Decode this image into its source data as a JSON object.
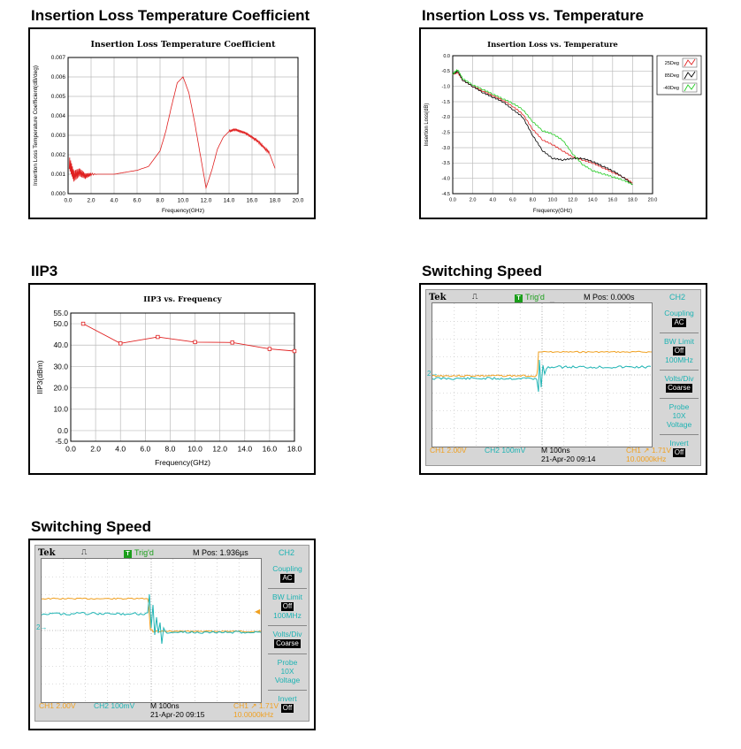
{
  "sections": [
    {
      "title": "Insertion Loss Temperature Coefficient"
    },
    {
      "title": "Insertion Loss vs. Temperature"
    },
    {
      "title": "IIP3"
    },
    {
      "title": "Switching Speed"
    },
    {
      "title": "Switching Speed"
    }
  ],
  "chart_data": [
    {
      "type": "line",
      "title": "Insertion Loss Temperature Coefficient",
      "xlabel": "Frequency(GHz)",
      "ylabel": "Insertion Loss Temperature Coefficient(dB/deg)",
      "xlim": [
        0,
        20
      ],
      "ylim": [
        0,
        0.007
      ],
      "xticks": [
        "0.0",
        "2.0",
        "4.0",
        "6.0",
        "8.0",
        "10.0",
        "12.0",
        "14.0",
        "16.0",
        "18.0",
        "20.0"
      ],
      "yticks": [
        "0.000",
        "0.001",
        "0.002",
        "0.003",
        "0.004",
        "0.005",
        "0.006",
        "0.007"
      ],
      "series": [
        {
          "color": "#e02020",
          "x": [
            0.1,
            0.5,
            1,
            1.5,
            2,
            3,
            4,
            5,
            6,
            7,
            8,
            8.5,
            9,
            9.5,
            10,
            10.5,
            11,
            11.5,
            12,
            12.5,
            13,
            13.5,
            14,
            14.5,
            15,
            15.5,
            16,
            16.5,
            17,
            17.5,
            18
          ],
          "y": [
            0.0016,
            0.0009,
            0.0011,
            0.0009,
            0.001,
            0.001,
            0.001,
            0.0011,
            0.0012,
            0.0014,
            0.0022,
            0.0032,
            0.0045,
            0.0057,
            0.006,
            0.0052,
            0.0037,
            0.002,
            0.0003,
            0.0012,
            0.0023,
            0.0029,
            0.0032,
            0.0033,
            0.0032,
            0.0031,
            0.0029,
            0.0027,
            0.0024,
            0.0021,
            0.0013
          ]
        }
      ],
      "grid": true
    },
    {
      "type": "line",
      "title": "Insertion Loss vs. Temperature",
      "xlabel": "Frequency(GHz)",
      "ylabel": "Insertion Loss(dB)",
      "xlim": [
        0,
        20
      ],
      "ylim": [
        -4.5,
        0
      ],
      "xticks": [
        "0.0",
        "2.0",
        "4.0",
        "6.0",
        "8.0",
        "10.0",
        "12.0",
        "14.0",
        "16.0",
        "18.0",
        "20.0"
      ],
      "yticks": [
        "0.0",
        "-0.5",
        "-1.0",
        "-1.5",
        "-2.0",
        "-2.5",
        "-3.0",
        "-3.5",
        "-4.0",
        "-4.5"
      ],
      "series": [
        {
          "name": "25Deg",
          "color": "#e02020",
          "x": [
            0,
            0.5,
            1,
            2,
            3,
            4,
            5,
            6,
            7,
            8,
            9,
            10,
            11,
            12,
            13,
            14,
            15,
            16,
            17,
            18
          ],
          "y": [
            -0.6,
            -0.55,
            -0.8,
            -1.0,
            -1.15,
            -1.3,
            -1.45,
            -1.65,
            -1.9,
            -2.4,
            -2.75,
            -2.9,
            -3.1,
            -3.3,
            -3.4,
            -3.5,
            -3.65,
            -3.8,
            -3.95,
            -4.15
          ]
        },
        {
          "name": "85Deg",
          "color": "#000000",
          "x": [
            0,
            0.5,
            1,
            2,
            3,
            4,
            5,
            6,
            7,
            8,
            9,
            10,
            11,
            12,
            13,
            14,
            15,
            16,
            17,
            18
          ],
          "y": [
            -0.6,
            -0.5,
            -0.8,
            -1.0,
            -1.2,
            -1.35,
            -1.5,
            -1.75,
            -2.0,
            -2.6,
            -3.1,
            -3.35,
            -3.4,
            -3.35,
            -3.35,
            -3.45,
            -3.6,
            -3.75,
            -3.95,
            -4.2
          ]
        },
        {
          "name": "-40Deg",
          "color": "#22cc22",
          "x": [
            0,
            0.5,
            1,
            2,
            3,
            4,
            5,
            6,
            7,
            8,
            9,
            10,
            11,
            12,
            13,
            14,
            15,
            16,
            17,
            18
          ],
          "y": [
            -0.6,
            -0.45,
            -0.75,
            -0.95,
            -1.1,
            -1.25,
            -1.4,
            -1.55,
            -1.75,
            -2.15,
            -2.45,
            -2.55,
            -2.75,
            -3.2,
            -3.55,
            -3.75,
            -3.85,
            -3.95,
            -4.05,
            -4.2
          ]
        }
      ],
      "grid": true,
      "legend": "top-right"
    },
    {
      "type": "line",
      "title": "IIP3 vs. Frequency",
      "xlabel": "Frequency(GHz)",
      "ylabel": "IIP3(dBm)",
      "xlim": [
        0,
        18
      ],
      "ylim": [
        -5,
        55
      ],
      "xticks": [
        "0.0",
        "2.0",
        "4.0",
        "6.0",
        "8.0",
        "10.0",
        "12.0",
        "14.0",
        "16.0",
        "18.0"
      ],
      "yticks": [
        "-5.0",
        "0.0",
        "10.0",
        "20.0",
        "30.0",
        "40.0",
        "50.0",
        "55.0"
      ],
      "series": [
        {
          "color": "#e02020",
          "x": [
            1,
            4,
            7,
            10,
            13,
            16,
            18
          ],
          "y": [
            50,
            40.8,
            43.8,
            41.4,
            41.2,
            38.2,
            37.2
          ]
        }
      ],
      "grid": true
    }
  ],
  "scopes": [
    {
      "brand": "Tek",
      "trig": "Trig'd",
      "trig_icon": "T",
      "mpos": "M Pos: 0.000s",
      "channel": "CH2",
      "menu": [
        {
          "label": "Coupling",
          "value": "AC"
        },
        {
          "label": "BW Limit",
          "value": "Off",
          "extra": "100MHz"
        },
        {
          "label": "Volts/Div",
          "value": "Coarse"
        },
        {
          "label": "Probe",
          "value": "10X",
          "extra": "Voltage",
          "plain": true
        },
        {
          "label": "Invert",
          "value": "Off"
        }
      ],
      "footer": {
        "ch1": "CH1  2.00V",
        "ch2": "CH2  100mV",
        "time": "M 100ns",
        "date": "21-Apr-20 09:14",
        "trig": "CH1 ↗ 1.71V",
        "freq": "10.0000kHz"
      },
      "ch2_marker": "2→"
    },
    {
      "brand": "Tek",
      "trig": "Trig'd",
      "trig_icon": "T",
      "mpos": "M Pos: 1.936µs",
      "channel": "CH2",
      "menu": [
        {
          "label": "Coupling",
          "value": "AC"
        },
        {
          "label": "BW Limit",
          "value": "Off",
          "extra": "100MHz"
        },
        {
          "label": "Volts/Div",
          "value": "Coarse"
        },
        {
          "label": "Probe",
          "value": "10X",
          "extra": "Voltage",
          "plain": true
        },
        {
          "label": "Invert",
          "value": "Off"
        }
      ],
      "footer": {
        "ch1": "CH1  2.00V",
        "ch2": "CH2  100mV",
        "time": "M 100ns",
        "date": "21-Apr-20 09:15",
        "trig": "CH1 ↗ 1.71V",
        "freq": "10.0000kHz"
      },
      "ch2_marker": "2→"
    }
  ]
}
